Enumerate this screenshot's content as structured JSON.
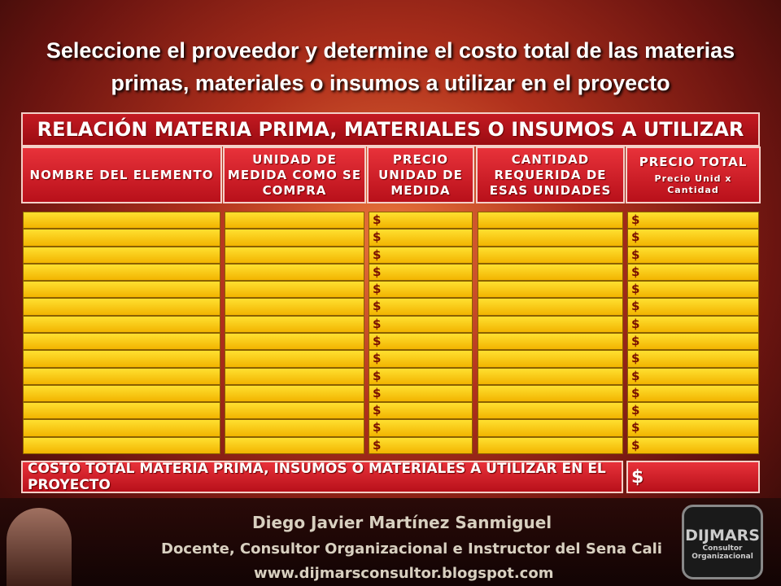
{
  "intro": "Seleccione el proveedor y determine el costo total de las materias primas, materiales o insumos a utilizar en el proyecto",
  "table": {
    "title": "RELACIÓN MATERIA PRIMA, MATERIALES O INSUMOS A UTILIZAR",
    "headers": [
      "NOMBRE DEL ELEMENTO",
      "UNIDAD DE MEDIDA COMO SE COMPRA",
      "PRECIO UNIDAD DE MEDIDA",
      "CANTIDAD REQUERIDA DE ESAS UNIDADES",
      "PRECIO TOTAL"
    ],
    "total_subheader": "Precio Unid x Cantidad",
    "rows": [
      [
        "$",
        "$"
      ],
      [
        "$",
        "$"
      ],
      [
        "$",
        "$"
      ],
      [
        "$",
        "$"
      ],
      [
        "$",
        "$"
      ],
      [
        "$",
        "$"
      ],
      [
        "$",
        "$"
      ],
      [
        "$",
        "$"
      ],
      [
        "$",
        "$"
      ],
      [
        "$",
        "$"
      ],
      [
        "$",
        "$"
      ],
      [
        "$",
        "$"
      ],
      [
        "$",
        "$"
      ],
      [
        "$",
        "$"
      ]
    ],
    "footer_label": "COSTO TOTAL MATERIA PRIMA, INSUMOS O MATERIALES A UTILIZAR EN EL PROYECTO",
    "footer_value": "$"
  },
  "author": {
    "name": "Diego Javier Martínez Sanmiguel",
    "role": "Docente, Consultor Organizacional e Instructor del Sena Cali",
    "url": "www.dijmarsconsultor.blogspot.com"
  },
  "logo": {
    "brand": "DIJMARS",
    "line1": "Consultor",
    "line2": "Organizacional"
  }
}
